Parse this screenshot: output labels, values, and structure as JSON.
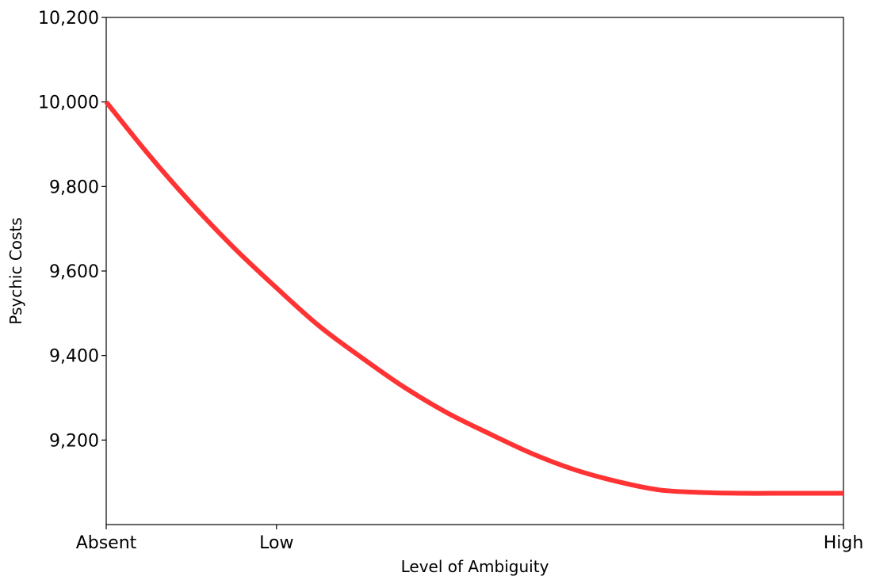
{
  "chart_data": {
    "type": "line",
    "title": "",
    "xlabel": "Level of Ambiguity",
    "ylabel": "Psychic Costs",
    "x_ticks": [
      {
        "label": "Absent",
        "x": 0
      },
      {
        "label": "Low",
        "x": 1
      },
      {
        "label": "High",
        "x": 4.33
      }
    ],
    "y_ticks": [
      {
        "label": "9,200",
        "value": 9200
      },
      {
        "label": "9,400",
        "value": 9400
      },
      {
        "label": "9,600",
        "value": 9600
      },
      {
        "label": "9,800",
        "value": 9800
      },
      {
        "label": "10,000",
        "value": 10000
      },
      {
        "label": "10,200",
        "value": 10200
      }
    ],
    "xlim": [
      0,
      4.33
    ],
    "ylim": [
      9000,
      10200
    ],
    "grid": false,
    "series": [
      {
        "color": "#ff3333",
        "x": [
          0,
          0.25,
          0.5,
          0.75,
          1,
          1.25,
          1.5,
          1.75,
          2,
          2.25,
          2.5,
          2.75,
          3,
          3.25,
          3.5,
          3.75,
          4,
          4.33
        ],
        "y": [
          10000,
          9875,
          9760,
          9655,
          9560,
          9470,
          9395,
          9325,
          9265,
          9215,
          9168,
          9130,
          9102,
          9082,
          9076,
          9074,
          9074,
          9074
        ]
      }
    ]
  }
}
